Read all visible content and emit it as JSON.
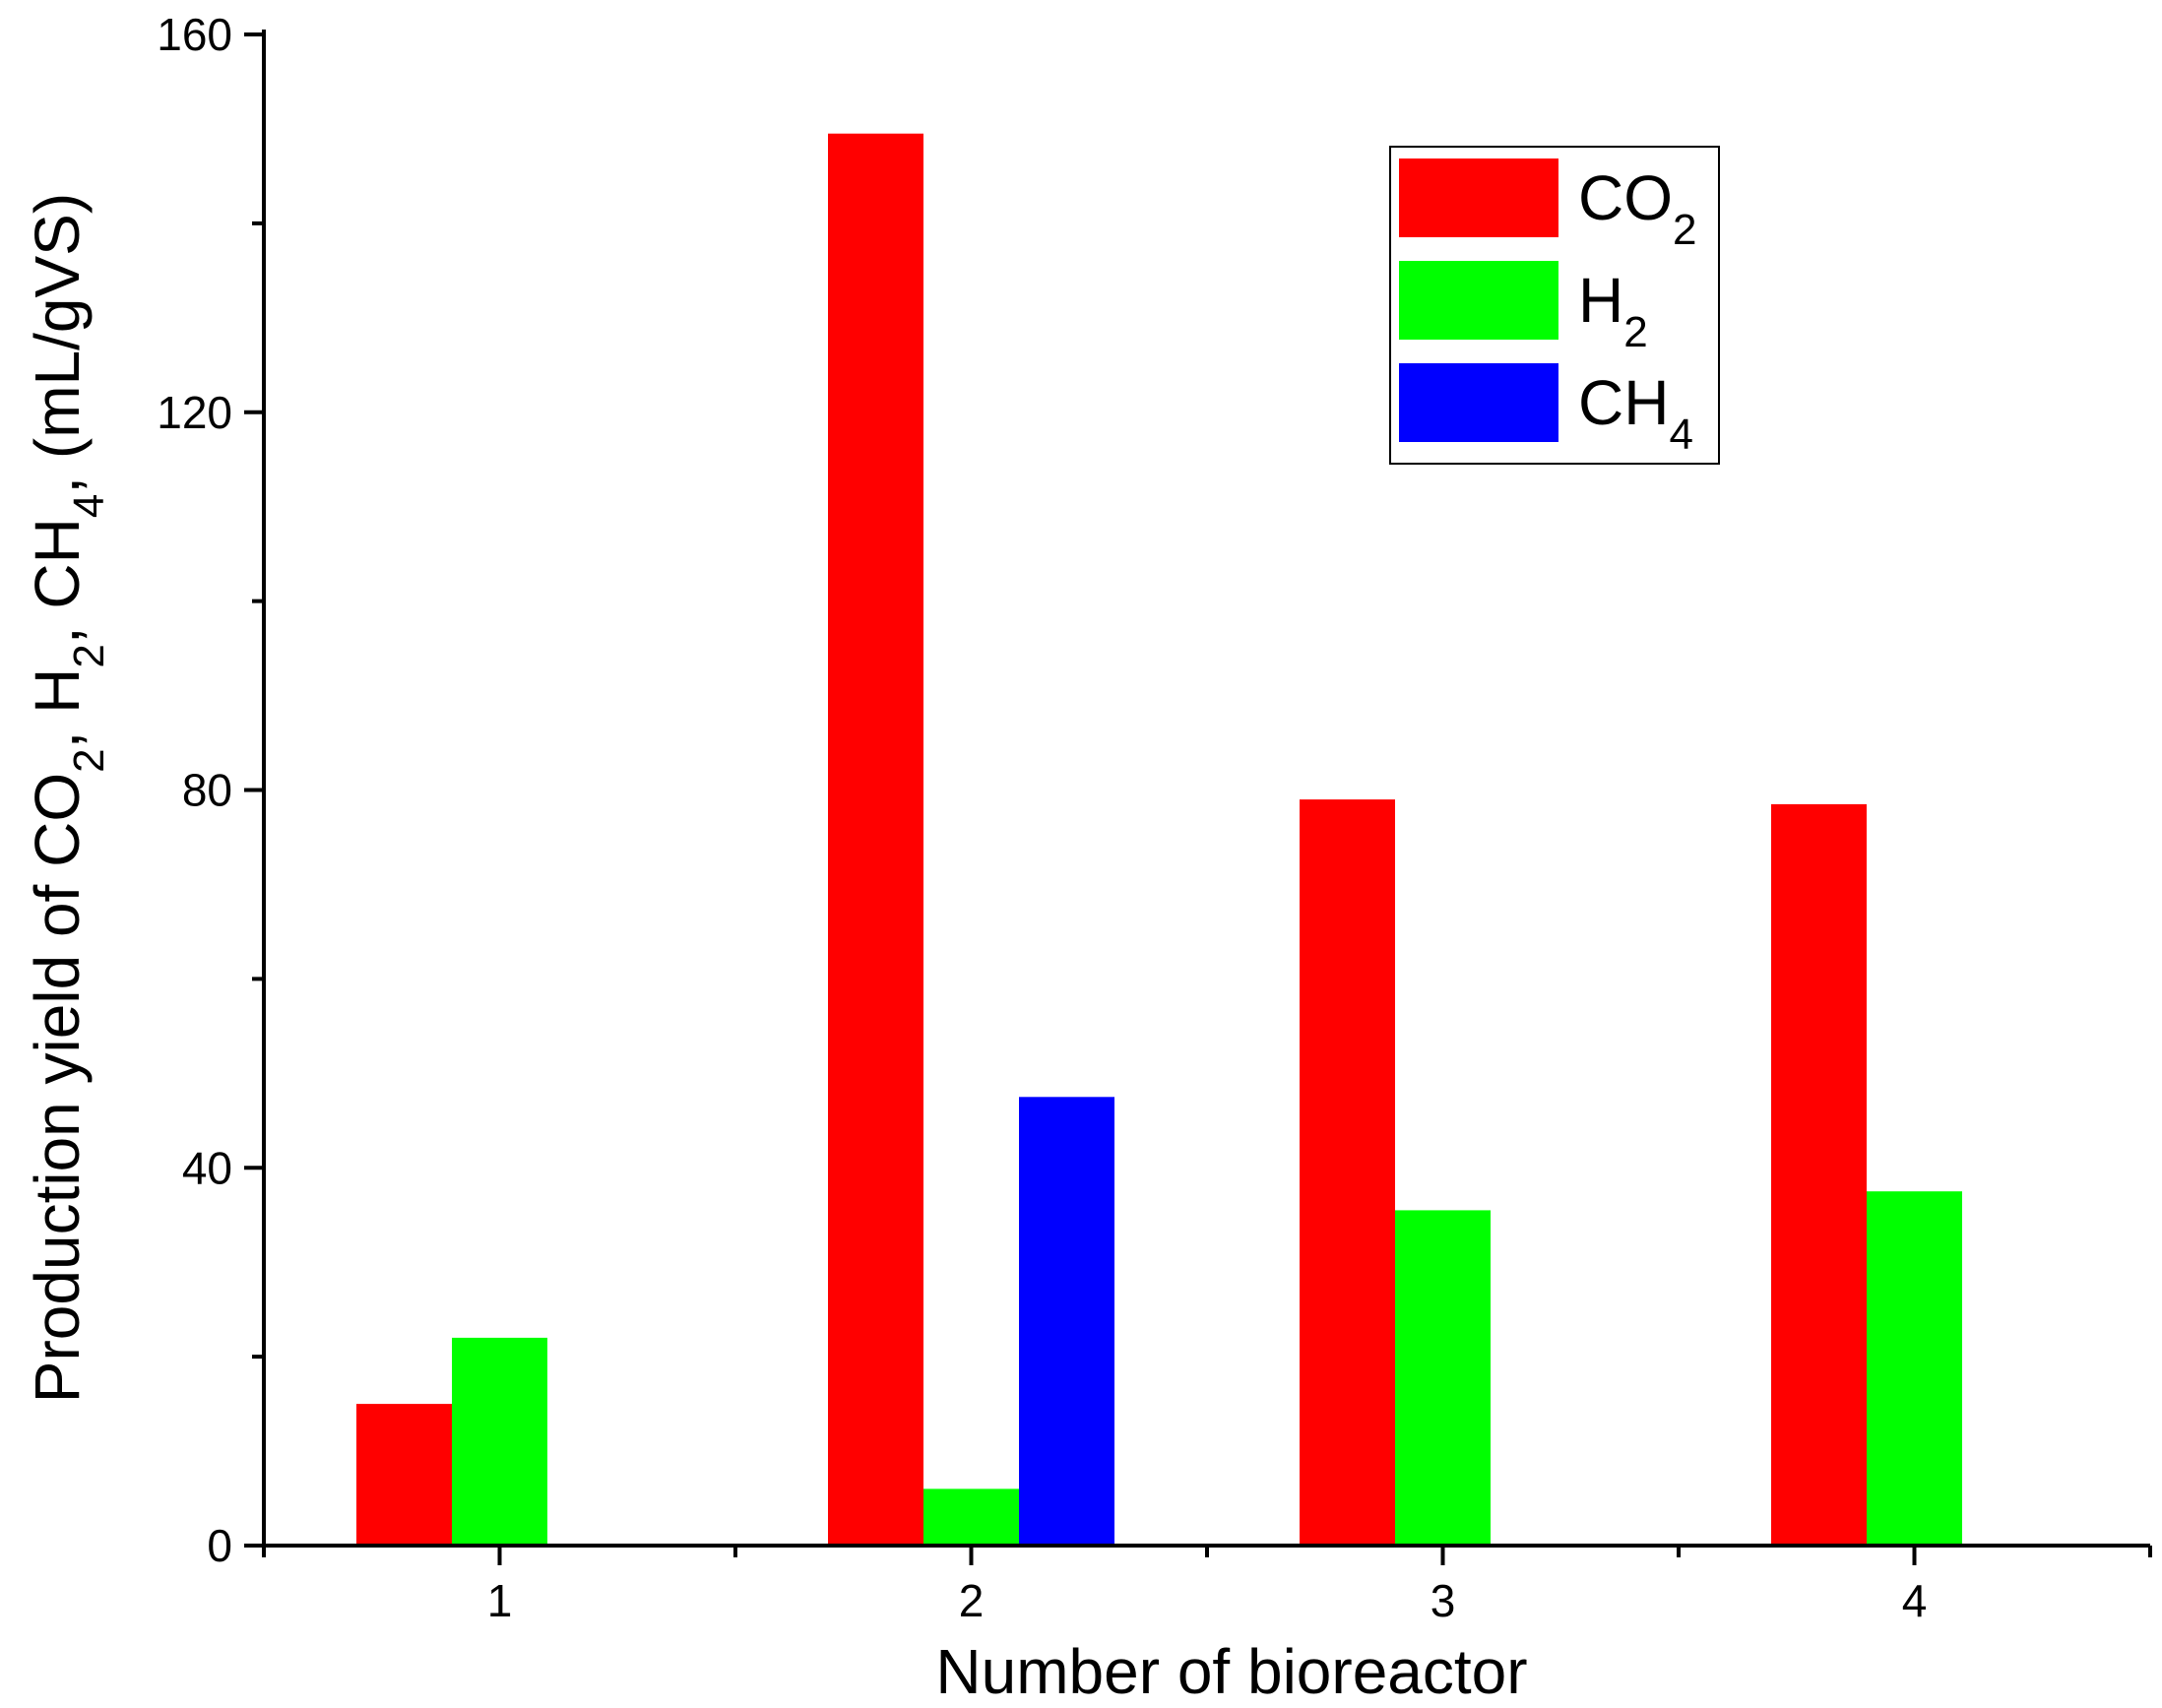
{
  "chart_data": {
    "type": "bar",
    "title": "",
    "xlabel": "Number of bioreactor",
    "ylabel_parts": [
      {
        "text": "Production yield of CO",
        "sub": false
      },
      {
        "text": "2",
        "sub": true
      },
      {
        "text": ", H",
        "sub": false
      },
      {
        "text": "2",
        "sub": true
      },
      {
        "text": ", CH",
        "sub": false
      },
      {
        "text": "4",
        "sub": true
      },
      {
        "text": ", (mL/gVS)",
        "sub": false
      }
    ],
    "categories": [
      "1",
      "2",
      "3",
      "4"
    ],
    "ylim": [
      0,
      160
    ],
    "yticks": [
      0,
      40,
      80,
      120,
      160
    ],
    "grid": false,
    "legend_position": "top-right",
    "series": [
      {
        "name": "CO",
        "subscript": "2",
        "color": "#ff0000",
        "values": [
          15,
          149.5,
          79,
          78.5
        ]
      },
      {
        "name": "H",
        "subscript": "2",
        "color": "#00ff00",
        "values": [
          22,
          6,
          35.5,
          37.5
        ]
      },
      {
        "name": "CH",
        "subscript": "4",
        "color": "#0000ff",
        "values": [
          0.2,
          47.5,
          0,
          0.2
        ]
      }
    ]
  }
}
